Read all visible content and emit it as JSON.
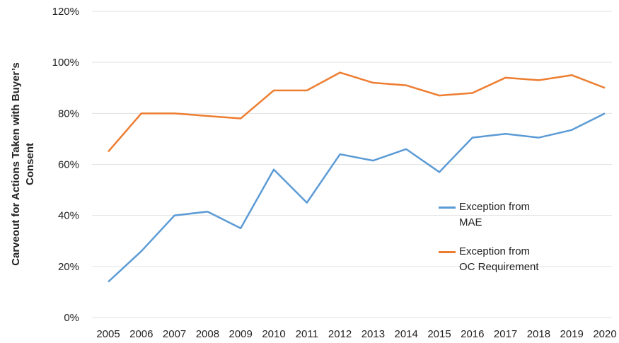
{
  "chart_data": {
    "type": "line",
    "y_label": [
      "Carveout for Actions Taken with Buyer’s",
      "Consent"
    ],
    "categories": [
      "2005",
      "2006",
      "2007",
      "2008",
      "2009",
      "2010",
      "2011",
      "2012",
      "2013",
      "2014",
      "2015",
      "2016",
      "2017",
      "2018",
      "2019",
      "2020"
    ],
    "series": [
      {
        "name": "Exception from MAE",
        "color": "#5b9bd5",
        "values": [
          14,
          26,
          40,
          41.5,
          35,
          58,
          45,
          64,
          61.5,
          66,
          57,
          70.5,
          72,
          70.5,
          73.5,
          80
        ]
      },
      {
        "name": "Exception from OC Requirement",
        "color": "#ed7d31",
        "values": [
          65,
          80,
          80,
          79,
          78,
          89,
          89,
          96,
          92,
          91,
          87,
          88,
          94,
          93,
          95,
          90
        ]
      }
    ],
    "ylim": [
      0,
      120
    ],
    "yticks": [
      {
        "value": 0,
        "label": "0%"
      },
      {
        "value": 20,
        "label": "20%"
      },
      {
        "value": 40,
        "label": "40%"
      },
      {
        "value": 60,
        "label": "60%"
      },
      {
        "value": 80,
        "label": "80%"
      },
      {
        "value": 100,
        "label": "100%"
      },
      {
        "value": 120,
        "label": "120%"
      }
    ],
    "grid": true
  }
}
